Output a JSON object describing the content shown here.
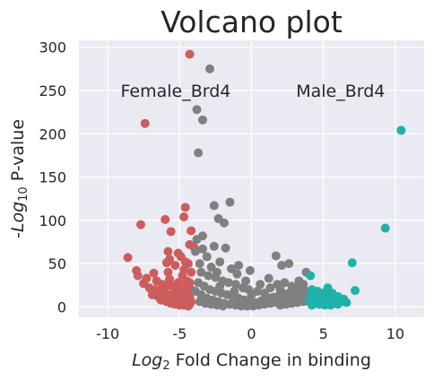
{
  "chart_data": {
    "type": "scatter",
    "title": "Volcano plot",
    "xlabel_prefix": "Log",
    "xlabel_sub": "2",
    "xlabel_rest": " Fold Change in binding",
    "ylabel_prefix": "-Log",
    "ylabel_sub": "10",
    "ylabel_rest": " P-value",
    "xlim": [
      -12,
      12
    ],
    "ylim": [
      -12,
      308
    ],
    "xticks": [
      -10,
      -5,
      0,
      5,
      10
    ],
    "yticks": [
      0,
      50,
      100,
      150,
      200,
      250,
      300
    ],
    "grid": true,
    "background": "#eaeaf2",
    "annotations": [
      {
        "text": "Female_Brd4",
        "x": -9.1,
        "y": 250
      },
      {
        "text": "Male_Brd4",
        "x": 3.1,
        "y": 250
      }
    ],
    "series": [
      {
        "color": "#cd5c5c",
        "points": [
          [
            -4.3,
            292
          ],
          [
            -7.4,
            212
          ],
          [
            -7.7,
            95
          ],
          [
            -6.0,
            101
          ],
          [
            -4.6,
            115
          ],
          [
            -4.7,
            104
          ],
          [
            -8.6,
            57
          ],
          [
            -4.2,
            88
          ],
          [
            -5.6,
            87
          ],
          [
            -4.3,
            72
          ],
          [
            -4.0,
            69
          ],
          [
            -5.8,
            64
          ],
          [
            -5.1,
            62
          ],
          [
            -4.9,
            58
          ],
          [
            -5.7,
            55
          ],
          [
            -5.9,
            51
          ],
          [
            -4.6,
            52
          ],
          [
            -4.4,
            50
          ],
          [
            -5.3,
            48
          ],
          [
            -8.0,
            42
          ],
          [
            -5.8,
            40
          ],
          [
            -6.8,
            39
          ],
          [
            -4.7,
            43
          ],
          [
            -7.3,
            33
          ],
          [
            -5.7,
            32
          ],
          [
            -7.9,
            36
          ],
          [
            -6.6,
            30
          ],
          [
            -4.2,
            40
          ],
          [
            -4.8,
            36
          ],
          [
            -7.5,
            27
          ],
          [
            -6.2,
            26
          ],
          [
            -5.5,
            24
          ],
          [
            -4.6,
            25
          ],
          [
            -7.1,
            22
          ],
          [
            -6.7,
            20
          ],
          [
            -6.4,
            18
          ],
          [
            -6.0,
            16
          ],
          [
            -5.7,
            14
          ],
          [
            -5.4,
            13
          ],
          [
            -5.1,
            12
          ],
          [
            -4.8,
            10
          ],
          [
            -4.5,
            9
          ],
          [
            -4.3,
            11
          ],
          [
            -6.9,
            14
          ],
          [
            -6.5,
            12
          ],
          [
            -6.1,
            10
          ],
          [
            -5.8,
            8
          ],
          [
            -5.5,
            7
          ],
          [
            -5.2,
            6
          ],
          [
            -4.9,
            5
          ],
          [
            -4.6,
            4
          ],
          [
            -4.3,
            3
          ],
          [
            -6.3,
            8
          ],
          [
            -5.9,
            6
          ],
          [
            -5.6,
            4
          ],
          [
            -5.3,
            3
          ],
          [
            -5.0,
            2
          ],
          [
            -4.7,
            2
          ],
          [
            -4.4,
            1
          ],
          [
            -4.2,
            6
          ],
          [
            -5.2,
            18
          ],
          [
            -5.0,
            15
          ],
          [
            -4.4,
            17
          ],
          [
            -4.2,
            20
          ],
          [
            -6.1,
            21
          ],
          [
            -5.9,
            24
          ],
          [
            -4.5,
            30
          ],
          [
            -4.3,
            28
          ],
          [
            -5.1,
            28
          ],
          [
            -4.8,
            22
          ]
        ]
      },
      {
        "color": "#808080",
        "points": [
          [
            -2.9,
            275
          ],
          [
            -3.8,
            228
          ],
          [
            -3.4,
            216
          ],
          [
            -3.7,
            178
          ],
          [
            -1.5,
            121
          ],
          [
            -2.6,
            117
          ],
          [
            -2.3,
            102
          ],
          [
            -1.9,
            97
          ],
          [
            -3.4,
            82
          ],
          [
            -3.8,
            78
          ],
          [
            -2.6,
            70
          ],
          [
            -1.8,
            68
          ],
          [
            -3.4,
            67
          ],
          [
            -3.9,
            64
          ],
          [
            -3.1,
            58
          ],
          [
            -2.2,
            52
          ],
          [
            -0.9,
            48
          ],
          [
            -3.6,
            50
          ],
          [
            -2.8,
            46
          ],
          [
            -1.4,
            44
          ],
          [
            -0.1,
            42
          ],
          [
            1.7,
            59
          ],
          [
            2.1,
            48
          ],
          [
            2.6,
            50
          ],
          [
            3.8,
            40
          ],
          [
            1.2,
            33
          ],
          [
            -3.5,
            40
          ],
          [
            -3.0,
            36
          ],
          [
            -2.5,
            34
          ],
          [
            -2.0,
            30
          ],
          [
            -1.6,
            28
          ],
          [
            -1.1,
            26
          ],
          [
            -0.6,
            22
          ],
          [
            -0.2,
            20
          ],
          [
            0.4,
            18
          ],
          [
            0.9,
            16
          ],
          [
            1.3,
            22
          ],
          [
            1.8,
            26
          ],
          [
            2.3,
            28
          ],
          [
            2.8,
            24
          ],
          [
            3.3,
            30
          ],
          [
            3.6,
            26
          ],
          [
            -3.7,
            28
          ],
          [
            -3.3,
            24
          ],
          [
            -2.9,
            20
          ],
          [
            -2.5,
            18
          ],
          [
            -2.1,
            16
          ],
          [
            -1.7,
            14
          ],
          [
            -1.3,
            12
          ],
          [
            -0.9,
            10
          ],
          [
            -0.5,
            8
          ],
          [
            -0.1,
            6
          ],
          [
            0.3,
            5
          ],
          [
            0.7,
            7
          ],
          [
            1.1,
            9
          ],
          [
            1.5,
            11
          ],
          [
            1.9,
            13
          ],
          [
            2.3,
            15
          ],
          [
            2.7,
            17
          ],
          [
            3.1,
            19
          ],
          [
            3.5,
            21
          ],
          [
            3.8,
            18
          ],
          [
            -3.9,
            18
          ],
          [
            -3.5,
            14
          ],
          [
            -3.1,
            10
          ],
          [
            -2.7,
            8
          ],
          [
            -2.3,
            6
          ],
          [
            -1.9,
            4
          ],
          [
            -1.5,
            3
          ],
          [
            -1.1,
            2
          ],
          [
            -0.7,
            1
          ],
          [
            -0.3,
            1
          ],
          [
            0.1,
            1
          ],
          [
            0.5,
            2
          ],
          [
            0.9,
            3
          ],
          [
            1.3,
            4
          ],
          [
            1.7,
            5
          ],
          [
            2.1,
            6
          ],
          [
            2.5,
            8
          ],
          [
            2.9,
            10
          ],
          [
            3.3,
            12
          ],
          [
            3.7,
            14
          ],
          [
            -3.6,
            6
          ],
          [
            -3.2,
            4
          ],
          [
            -2.8,
            3
          ],
          [
            -2.4,
            2
          ],
          [
            -2.0,
            1
          ],
          [
            2.0,
            2
          ],
          [
            2.4,
            3
          ],
          [
            2.8,
            4
          ],
          [
            3.2,
            5
          ],
          [
            3.6,
            6
          ],
          [
            -2.2,
            24
          ],
          [
            -1.2,
            18
          ],
          [
            0.0,
            14
          ],
          [
            1.0,
            12
          ],
          [
            2.0,
            20
          ],
          [
            3.0,
            22
          ],
          [
            -0.4,
            30
          ],
          [
            0.6,
            26
          ],
          [
            -1.0,
            38
          ],
          [
            -2.4,
            40
          ]
        ]
      },
      {
        "color": "#20b2aa",
        "points": [
          [
            10.4,
            204
          ],
          [
            9.3,
            91
          ],
          [
            7.0,
            51
          ],
          [
            7.2,
            19
          ],
          [
            4.1,
            36
          ],
          [
            5.3,
            22
          ],
          [
            5.6,
            16
          ],
          [
            6.0,
            12
          ],
          [
            6.4,
            9
          ],
          [
            4.2,
            20
          ],
          [
            4.6,
            18
          ],
          [
            5.0,
            16
          ],
          [
            4.4,
            14
          ],
          [
            4.8,
            12
          ],
          [
            5.2,
            10
          ],
          [
            5.6,
            8
          ],
          [
            6.2,
            6
          ],
          [
            6.6,
            5
          ],
          [
            4.1,
            10
          ],
          [
            4.5,
            8
          ],
          [
            4.9,
            6
          ],
          [
            5.3,
            5
          ],
          [
            5.7,
            4
          ],
          [
            4.3,
            4
          ],
          [
            4.7,
            3
          ],
          [
            5.1,
            2
          ],
          [
            5.5,
            2
          ],
          [
            6.0,
            3
          ],
          [
            4.0,
            6
          ],
          [
            4.2,
            2
          ]
        ]
      }
    ]
  }
}
